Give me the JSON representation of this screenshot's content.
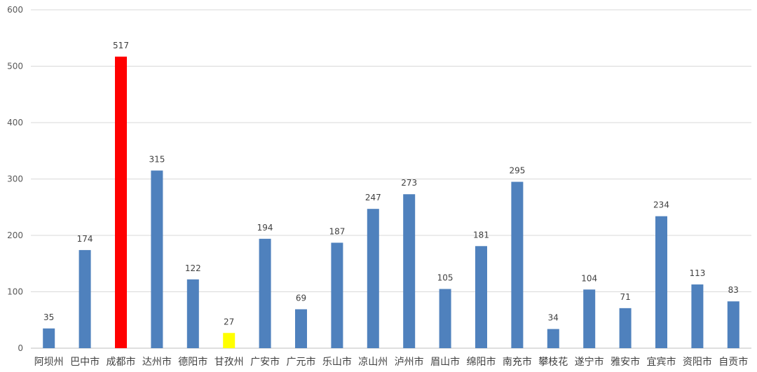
{
  "chart_data": {
    "type": "bar",
    "title": "",
    "xlabel": "",
    "ylabel": "",
    "ylim": [
      0,
      600
    ],
    "yticks": [
      0,
      100,
      200,
      300,
      400,
      500,
      600
    ],
    "grid": true,
    "legend": "none",
    "categories": [
      "阿坝州",
      "巴中市",
      "成都市",
      "达州市",
      "德阳市",
      "甘孜州",
      "广安市",
      "广元市",
      "乐山市",
      "凉山州",
      "泸州市",
      "眉山市",
      "绵阳市",
      "南充市",
      "攀枝花",
      "遂宁市",
      "雅安市",
      "宜宾市",
      "资阳市",
      "自贡市"
    ],
    "values": [
      35,
      174,
      517,
      315,
      122,
      27,
      194,
      69,
      187,
      247,
      273,
      105,
      181,
      295,
      34,
      104,
      71,
      234,
      113,
      83
    ],
    "colors": {
      "default": "#4f81bd",
      "highlight_max": "#ff0000",
      "highlight_min": "#ffff00"
    },
    "highlights": {
      "成都市": "highlight_max",
      "甘孜州": "highlight_min"
    }
  }
}
